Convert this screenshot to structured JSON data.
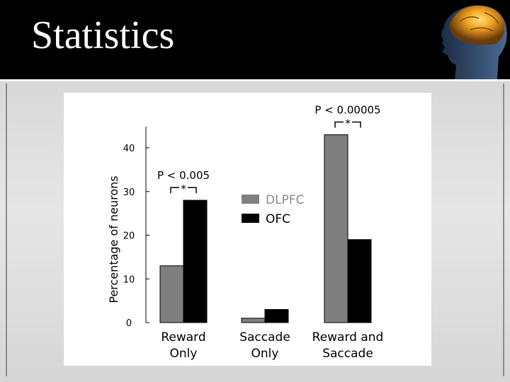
{
  "slide": {
    "title": "Statistics"
  },
  "colors": {
    "dlpfc": "#7f7f7f",
    "ofc": "#000000"
  },
  "chart_data": {
    "type": "bar",
    "categories": [
      [
        "Reward",
        "Only"
      ],
      [
        "Saccade",
        "Only"
      ],
      [
        "Reward and",
        "Saccade"
      ]
    ],
    "series": [
      {
        "name": "DLPFC",
        "values": [
          13,
          1,
          43
        ]
      },
      {
        "name": "OFC",
        "values": [
          28,
          3,
          19
        ]
      }
    ],
    "ylabel": "Percentage of neurons",
    "xlabel": "",
    "ylim": [
      0,
      40
    ],
    "yticks": [
      0,
      10,
      20,
      30,
      40
    ],
    "legend_position": "center",
    "annotations": [
      {
        "category_index": 0,
        "text": "P < 0.005",
        "star": "*"
      },
      {
        "category_index": 2,
        "text": "P < 0.00005",
        "star": "*"
      }
    ],
    "grid": false
  }
}
